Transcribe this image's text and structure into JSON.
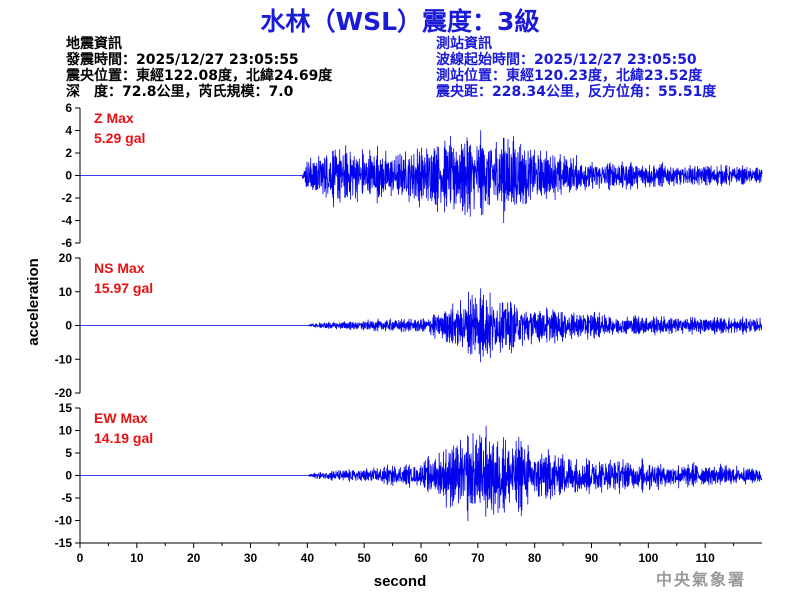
{
  "header": {
    "title": "水林（WSL）震度：3級"
  },
  "quake_info": {
    "heading": "地震資訊",
    "origin_time": "發震時間：2025/12/27 23:05:55",
    "epicenter": "震央位置：東經122.08度，北緯24.69度",
    "depth_magnitude": "深　度：72.8公里，芮氏規模：7.0"
  },
  "station_info": {
    "heading": "測站資訊",
    "wave_start": "波線起始時間：2025/12/27 23:05:50",
    "location": "測站位置：東經120.23度，北緯23.52度",
    "distance_azimuth": "震央距：228.34公里，反方位角：55.51度"
  },
  "footer": {
    "agency": "中央氣象署"
  },
  "colors": {
    "title": "#1a1ad8",
    "trace": "#0000ee",
    "max_label": "#e81010",
    "axis": "#000000"
  },
  "chart_data": {
    "type": "line",
    "xlabel": "second",
    "ylabel": "acceleration",
    "xlim": [
      0,
      120
    ],
    "xticks": [
      0,
      10,
      20,
      30,
      40,
      50,
      60,
      70,
      80,
      90,
      100,
      110
    ],
    "grid": false,
    "panels": [
      {
        "component": "Z",
        "max_label": "Z Max",
        "max_value": "5.29 gal",
        "ylim": [
          -6,
          6
        ],
        "yticks": [
          6,
          4,
          2,
          0,
          -2,
          -4,
          -6
        ],
        "envelope": [
          [
            0,
            0
          ],
          [
            39,
            0
          ],
          [
            40,
            2.5
          ],
          [
            45,
            3.5
          ],
          [
            50,
            3.5
          ],
          [
            55,
            3.0
          ],
          [
            60,
            3.5
          ],
          [
            65,
            4.5
          ],
          [
            70,
            5.0
          ],
          [
            75,
            5.0
          ],
          [
            80,
            3.5
          ],
          [
            85,
            2.5
          ],
          [
            90,
            2.0
          ],
          [
            95,
            1.8
          ],
          [
            100,
            1.5
          ],
          [
            105,
            1.3
          ],
          [
            110,
            1.3
          ],
          [
            115,
            1.1
          ],
          [
            120,
            1.0
          ]
        ]
      },
      {
        "component": "NS",
        "max_label": "NS Max",
        "max_value": "15.97 gal",
        "ylim": [
          -20,
          20
        ],
        "yticks": [
          20,
          10,
          0,
          -10,
          -20
        ],
        "envelope": [
          [
            0,
            0
          ],
          [
            40,
            0
          ],
          [
            41,
            1.2
          ],
          [
            50,
            2.2
          ],
          [
            60,
            3.0
          ],
          [
            65,
            7.0
          ],
          [
            70,
            15.5
          ],
          [
            72,
            13.0
          ],
          [
            76,
            10.0
          ],
          [
            80,
            8.0
          ],
          [
            85,
            6.0
          ],
          [
            90,
            5.0
          ],
          [
            95,
            4.5
          ],
          [
            100,
            4.0
          ],
          [
            110,
            3.5
          ],
          [
            120,
            3.0
          ]
        ]
      },
      {
        "component": "EW",
        "max_label": "EW Max",
        "max_value": "14.19 gal",
        "ylim": [
          -15,
          15
        ],
        "yticks": [
          15,
          10,
          5,
          0,
          -5,
          -10,
          -15
        ],
        "envelope": [
          [
            0,
            0
          ],
          [
            40,
            0
          ],
          [
            41,
            1.0
          ],
          [
            50,
            2.5
          ],
          [
            60,
            3.5
          ],
          [
            65,
            9.0
          ],
          [
            70,
            13.5
          ],
          [
            75,
            12.0
          ],
          [
            80,
            9.0
          ],
          [
            85,
            6.5
          ],
          [
            90,
            5.5
          ],
          [
            95,
            5.0
          ],
          [
            100,
            4.5
          ],
          [
            110,
            3.5
          ],
          [
            120,
            2.5
          ]
        ]
      }
    ]
  }
}
